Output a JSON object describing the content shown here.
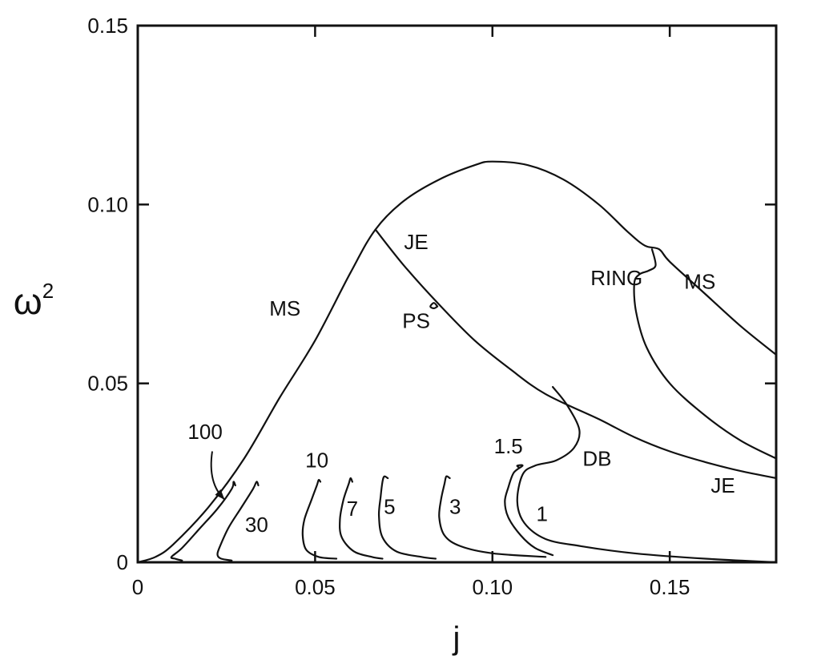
{
  "chart_data": {
    "type": "line",
    "xlabel": "j",
    "ylabel": "ω",
    "ylabel_superscript": "2",
    "xlim": [
      0,
      0.18
    ],
    "ylim": [
      0,
      0.15
    ],
    "x_ticks": [
      {
        "value": 0,
        "label": "0"
      },
      {
        "value": 0.05,
        "label": "0.05"
      },
      {
        "value": 0.1,
        "label": "0.10"
      },
      {
        "value": 0.15,
        "label": "0.15"
      }
    ],
    "y_ticks": [
      {
        "value": 0,
        "label": "0"
      },
      {
        "value": 0.05,
        "label": "0.05"
      },
      {
        "value": 0.1,
        "label": "0.10"
      },
      {
        "value": 0.15,
        "label": "0.15"
      }
    ],
    "series": [
      {
        "name": "MS",
        "points": [
          [
            0,
            0
          ],
          [
            0.005,
            0.0015
          ],
          [
            0.01,
            0.005
          ],
          [
            0.02,
            0.0155
          ],
          [
            0.03,
            0.029
          ],
          [
            0.04,
            0.046
          ],
          [
            0.05,
            0.062
          ],
          [
            0.06,
            0.081
          ],
          [
            0.067,
            0.093
          ],
          [
            0.075,
            0.101
          ],
          [
            0.085,
            0.107
          ],
          [
            0.095,
            0.111
          ],
          [
            0.1,
            0.112
          ],
          [
            0.11,
            0.111
          ],
          [
            0.12,
            0.107
          ],
          [
            0.13,
            0.1
          ],
          [
            0.138,
            0.0925
          ],
          [
            0.143,
            0.0885
          ],
          [
            0.147,
            0.0875
          ],
          [
            0.15,
            0.084
          ],
          [
            0.16,
            0.075
          ],
          [
            0.17,
            0.066
          ],
          [
            0.18,
            0.058
          ]
        ]
      },
      {
        "name": "JE",
        "points": [
          [
            0.067,
            0.093
          ],
          [
            0.075,
            0.083
          ],
          [
            0.085,
            0.072
          ],
          [
            0.095,
            0.062
          ],
          [
            0.105,
            0.054
          ],
          [
            0.115,
            0.047
          ],
          [
            0.13,
            0.04
          ],
          [
            0.14,
            0.035
          ],
          [
            0.15,
            0.031
          ],
          [
            0.16,
            0.028
          ],
          [
            0.17,
            0.0255
          ],
          [
            0.18,
            0.0235
          ]
        ]
      },
      {
        "name": "RING",
        "points": [
          [
            0.145,
            0.0875
          ],
          [
            0.146,
            0.083
          ],
          [
            0.144,
            0.0815
          ],
          [
            0.1415,
            0.0805
          ],
          [
            0.14,
            0.078
          ],
          [
            0.1405,
            0.07
          ],
          [
            0.1435,
            0.06
          ],
          [
            0.15,
            0.05
          ],
          [
            0.16,
            0.041
          ],
          [
            0.17,
            0.034
          ],
          [
            0.18,
            0.029
          ]
        ]
      },
      {
        "name": "PS",
        "points": [
          [
            0.0845,
            0.0715
          ],
          [
            0.0835,
            0.0725
          ],
          [
            0.0825,
            0.0715
          ],
          [
            0.0835,
            0.071
          ],
          [
            0.0845,
            0.0715
          ]
        ]
      },
      {
        "name": "DB",
        "points": [
          [
            0.117,
            0.049
          ],
          [
            0.121,
            0.044
          ],
          [
            0.1245,
            0.037
          ],
          [
            0.123,
            0.032
          ],
          [
            0.118,
            0.0285
          ],
          [
            0.112,
            0.027
          ],
          [
            0.1085,
            0.0245
          ],
          [
            0.107,
            0.017
          ],
          [
            0.109,
            0.011
          ],
          [
            0.115,
            0.0065
          ],
          [
            0.125,
            0.0045
          ],
          [
            0.14,
            0.0025
          ],
          [
            0.16,
            0.001
          ],
          [
            0.18,
            0
          ]
        ]
      },
      {
        "name": "1.5",
        "points": [
          [
            0.1075,
            0.0265
          ],
          [
            0.107,
            0.027
          ],
          [
            0.1085,
            0.027
          ],
          [
            0.106,
            0.025
          ],
          [
            0.1045,
            0.021
          ],
          [
            0.1035,
            0.017
          ],
          [
            0.1045,
            0.0125
          ],
          [
            0.108,
            0.0075
          ],
          [
            0.112,
            0.004
          ],
          [
            0.117,
            0.002
          ]
        ]
      },
      {
        "name": "3",
        "points": [
          [
            0.088,
            0.0235
          ],
          [
            0.087,
            0.024
          ],
          [
            0.0865,
            0.022
          ],
          [
            0.0855,
            0.0175
          ],
          [
            0.085,
            0.0125
          ],
          [
            0.0865,
            0.0075
          ],
          [
            0.091,
            0.0045
          ],
          [
            0.1,
            0.0025
          ],
          [
            0.115,
            0.0015
          ]
        ]
      },
      {
        "name": "5",
        "points": [
          [
            0.0705,
            0.0235
          ],
          [
            0.0695,
            0.024
          ],
          [
            0.069,
            0.0225
          ],
          [
            0.0685,
            0.0185
          ],
          [
            0.068,
            0.013
          ],
          [
            0.069,
            0.007
          ],
          [
            0.073,
            0.003
          ],
          [
            0.08,
            0.0015
          ],
          [
            0.084,
            0.001
          ]
        ]
      },
      {
        "name": "7",
        "points": [
          [
            0.0605,
            0.0225
          ],
          [
            0.06,
            0.0235
          ],
          [
            0.0595,
            0.022
          ],
          [
            0.058,
            0.0175
          ],
          [
            0.057,
            0.012
          ],
          [
            0.0575,
            0.007
          ],
          [
            0.061,
            0.003
          ],
          [
            0.066,
            0.0015
          ],
          [
            0.069,
            0.001
          ]
        ]
      },
      {
        "name": "10",
        "points": [
          [
            0.0515,
            0.0225
          ],
          [
            0.051,
            0.023
          ],
          [
            0.0505,
            0.0215
          ],
          [
            0.049,
            0.0175
          ],
          [
            0.047,
            0.012
          ],
          [
            0.0465,
            0.0075
          ],
          [
            0.0475,
            0.0035
          ],
          [
            0.051,
            0.0015
          ],
          [
            0.056,
            0.001
          ]
        ]
      },
      {
        "name": "30",
        "points": [
          [
            0.034,
            0.0215
          ],
          [
            0.0335,
            0.0225
          ],
          [
            0.0325,
            0.0205
          ],
          [
            0.029,
            0.015
          ],
          [
            0.0255,
            0.0095
          ],
          [
            0.023,
            0.004
          ],
          [
            0.0225,
            0.002
          ],
          [
            0.0235,
            0.001
          ],
          [
            0.0265,
            0.0005
          ]
        ]
      },
      {
        "name": "100",
        "points": [
          [
            0.0275,
            0.0215
          ],
          [
            0.027,
            0.0225
          ],
          [
            0.0265,
            0.0205
          ],
          [
            0.0225,
            0.015
          ],
          [
            0.0175,
            0.0095
          ],
          [
            0.0125,
            0.004
          ],
          [
            0.0095,
            0.0015
          ],
          [
            0.0105,
            0.001
          ],
          [
            0.0125,
            0.0005
          ]
        ]
      }
    ],
    "curve_labels": [
      {
        "text": "MS",
        "x": 0.0415,
        "y": 0.069
      },
      {
        "text": "MS",
        "x": 0.1585,
        "y": 0.0765
      },
      {
        "text": "JE",
        "x": 0.0785,
        "y": 0.0875
      },
      {
        "text": "JE",
        "x": 0.165,
        "y": 0.0195
      },
      {
        "text": "PS",
        "x": 0.0785,
        "y": 0.0655
      },
      {
        "text": "RING",
        "x": 0.135,
        "y": 0.0775
      },
      {
        "text": "DB",
        "x": 0.1295,
        "y": 0.027
      },
      {
        "text": "1.5",
        "x": 0.1045,
        "y": 0.0305
      },
      {
        "text": "1",
        "x": 0.114,
        "y": 0.0115
      },
      {
        "text": "3",
        "x": 0.0895,
        "y": 0.0135
      },
      {
        "text": "5",
        "x": 0.071,
        "y": 0.0135
      },
      {
        "text": "7",
        "x": 0.0605,
        "y": 0.013
      },
      {
        "text": "10",
        "x": 0.0505,
        "y": 0.0265
      },
      {
        "text": "30",
        "x": 0.0335,
        "y": 0.0085
      },
      {
        "text": "100",
        "x": 0.019,
        "y": 0.0345
      }
    ],
    "arrow_100": {
      "from": [
        0.021,
        0.031
      ],
      "to": [
        0.0245,
        0.0175
      ]
    }
  }
}
